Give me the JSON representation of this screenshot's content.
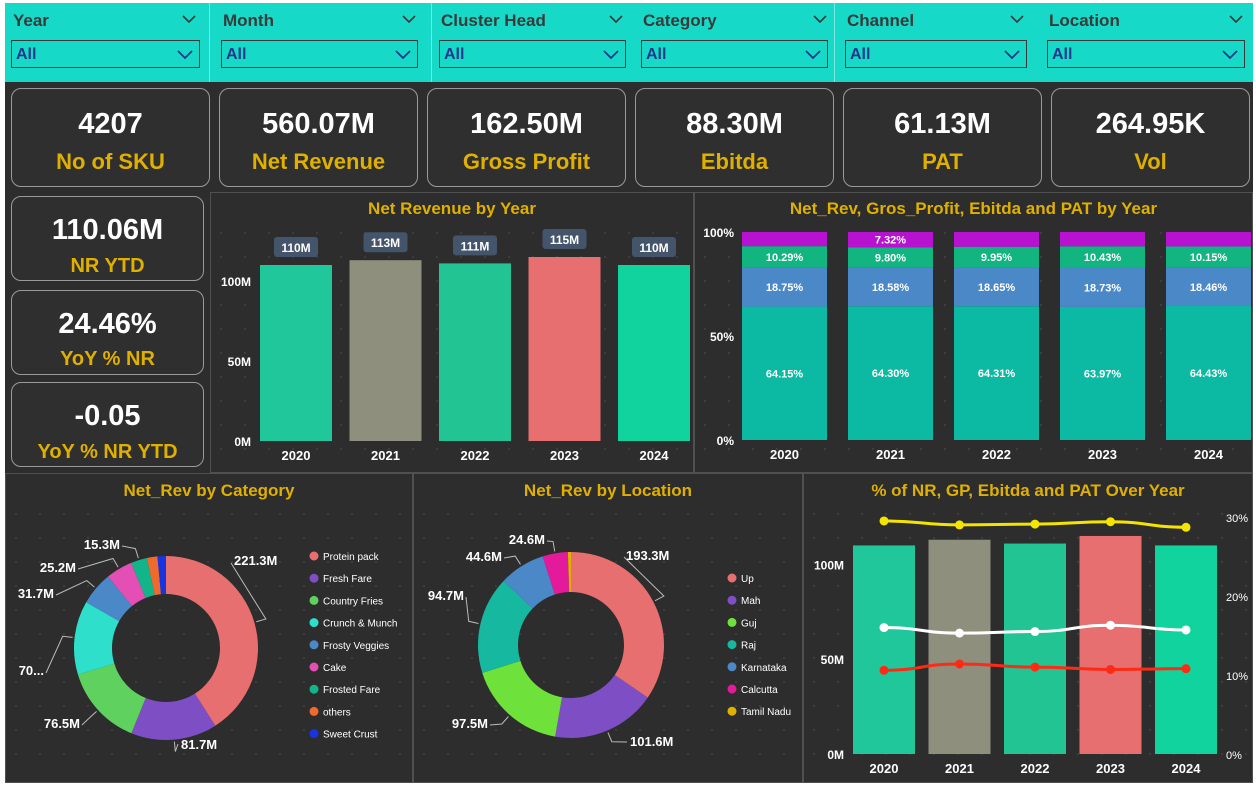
{
  "slicers": [
    {
      "label": "Year",
      "value": "All"
    },
    {
      "label": "Month",
      "value": "All"
    },
    {
      "label": "Cluster Head",
      "value": "All"
    },
    {
      "label": "Category",
      "value": "All"
    },
    {
      "label": "Channel",
      "value": "All"
    },
    {
      "label": "Location",
      "value": "All"
    }
  ],
  "kpis": [
    {
      "value": "4207",
      "label": "No of SKU"
    },
    {
      "value": "560.07M",
      "label": "Net Revenue"
    },
    {
      "value": "162.50M",
      "label": "Gross Profit"
    },
    {
      "value": "88.30M",
      "label": "Ebitda"
    },
    {
      "value": "61.13M",
      "label": "PAT"
    },
    {
      "value": "264.95K",
      "label": "Vol"
    }
  ],
  "side_kpis": [
    {
      "value": "110.06M",
      "label": "NR YTD"
    },
    {
      "value": "24.46%",
      "label": "YoY % NR"
    },
    {
      "value": "-0.05",
      "label": "YoY % NR YTD"
    }
  ],
  "colors": {
    "teal": "#1fc79a",
    "gray": "#8f8f7e",
    "green": "#22c493",
    "red": "#e86f6f",
    "aqua": "#11d39d",
    "gold": "#e0b000"
  },
  "chart_data": [
    {
      "type": "bar",
      "title": "Net Revenue by Year",
      "categories": [
        "2020",
        "2021",
        "2022",
        "2023",
        "2024"
      ],
      "values": [
        110,
        113,
        111,
        115,
        110
      ],
      "data_labels": [
        "110M",
        "113M",
        "111M",
        "115M",
        "110M"
      ],
      "bar_colors": [
        "#1fc79a",
        "#8f8f7e",
        "#22c493",
        "#e86f6f",
        "#11d39d"
      ],
      "yticks": [
        "0M",
        "50M",
        "100M"
      ],
      "ylim": [
        0,
        130
      ]
    },
    {
      "type": "bar",
      "stacked": "100%",
      "title": "Net_Rev, Gros_Profit, Ebitda and PAT by Year",
      "categories": [
        "2020",
        "2021",
        "2022",
        "2023",
        "2024"
      ],
      "yticks": [
        "0%",
        "50%",
        "100%"
      ],
      "series": [
        {
          "values": [
            64.15,
            64.3,
            64.31,
            63.97,
            64.43
          ],
          "labels": [
            "64.15%",
            "64.30%",
            "64.31%",
            "63.97%",
            "64.43%"
          ],
          "color": "#0cb9a3"
        },
        {
          "values": [
            18.75,
            18.58,
            18.65,
            18.73,
            18.46
          ],
          "labels": [
            "18.75%",
            "18.58%",
            "18.65%",
            "18.73%",
            "18.46%"
          ],
          "color": "#4b88c8"
        },
        {
          "values": [
            10.29,
            9.8,
            9.95,
            10.43,
            10.15
          ],
          "labels": [
            "10.29%",
            "9.80%",
            "9.95%",
            "10.43%",
            "10.15%"
          ],
          "color": "#12b47f"
        },
        {
          "values": [
            6.81,
            7.32,
            7.09,
            6.87,
            6.96
          ],
          "labels": [
            "",
            "7.32%",
            "",
            "",
            ""
          ],
          "color": "#b612d0"
        }
      ]
    },
    {
      "type": "pie",
      "donut": true,
      "title": "Net_Rev by Category",
      "slices": [
        {
          "name": "Protein pack",
          "value": 221.3,
          "label": "221.3M",
          "color": "#e86f6f"
        },
        {
          "name": "Fresh Fare",
          "value": 81.7,
          "label": "81.7M",
          "color": "#7e4fc4"
        },
        {
          "name": "Country Fries",
          "value": 76.5,
          "label": "76.5M",
          "color": "#5ed15e"
        },
        {
          "name": "Crunch & Munch",
          "value": 70,
          "label": "70...",
          "color": "#2ee0cc"
        },
        {
          "name": "Frosty Veggies",
          "value": 31.7,
          "label": "31.7M",
          "color": "#4b88c8"
        },
        {
          "name": "Cake",
          "value": 25.2,
          "label": "25.2M",
          "color": "#e34fb4"
        },
        {
          "name": "Frosted Fare",
          "value": 15.3,
          "label": "15.3M",
          "color": "#12b48a"
        },
        {
          "name": "others",
          "value": 10,
          "label": "",
          "color": "#ee6a2e"
        },
        {
          "name": "Sweet Crust",
          "value": 8,
          "label": "",
          "color": "#1833e0"
        }
      ]
    },
    {
      "type": "pie",
      "donut": true,
      "title": "Net_Rev by Location",
      "slices": [
        {
          "name": "Up",
          "value": 193.3,
          "label": "193.3M",
          "color": "#e86f6f"
        },
        {
          "name": "Mah",
          "value": 101.6,
          "label": "101.6M",
          "color": "#7e4fc4"
        },
        {
          "name": "Guj",
          "value": 97.5,
          "label": "97.5M",
          "color": "#6ee23a"
        },
        {
          "name": "Raj",
          "value": 94.7,
          "label": "94.7M",
          "color": "#16b8a0"
        },
        {
          "name": "Karnataka",
          "value": 44.6,
          "label": "44.6M",
          "color": "#4b88c8"
        },
        {
          "name": "Calcutta",
          "value": 24.6,
          "label": "24.6M",
          "color": "#e31a9a"
        },
        {
          "name": "Tamil Nadu",
          "value": 3,
          "label": "",
          "color": "#e0b000"
        }
      ]
    },
    {
      "type": "bar",
      "combo": "bar+line",
      "title": "% of NR, GP, Ebitda and PAT Over Year",
      "categories": [
        "2020",
        "2021",
        "2022",
        "2023",
        "2024"
      ],
      "values": [
        110,
        113,
        111,
        115,
        110
      ],
      "bar_colors": [
        "#1fc79a",
        "#8f8f7e",
        "#22c493",
        "#e86f6f",
        "#11d39d"
      ],
      "yticks": [
        "0M",
        "50M",
        "100M"
      ],
      "ylim": [
        0,
        125
      ],
      "y2ticks": [
        "0%",
        "10%",
        "20%",
        "30%"
      ],
      "y2lim": [
        0,
        30
      ],
      "series": [
        {
          "values": [
            29.5,
            29.0,
            29.1,
            29.4,
            28.7
          ],
          "color": "#f4e400"
        },
        {
          "values": [
            16.0,
            15.3,
            15.5,
            16.3,
            15.7
          ],
          "color": "#ffffff"
        },
        {
          "values": [
            10.6,
            11.4,
            11.0,
            10.7,
            10.8
          ],
          "color": "#ff2a14"
        }
      ]
    }
  ]
}
